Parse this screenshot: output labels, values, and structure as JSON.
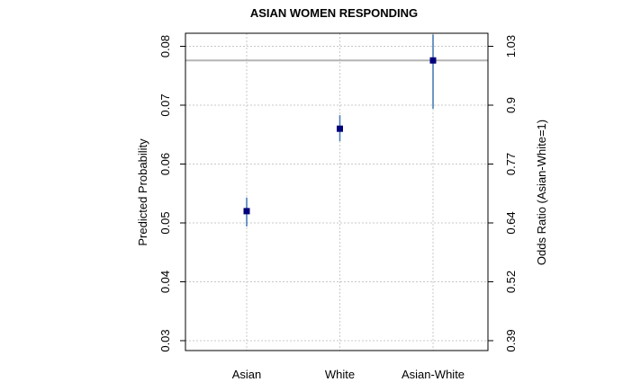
{
  "chart_data": {
    "type": "scatter",
    "title": "ASIAN WOMEN RESPONDING",
    "xlabel": "",
    "ylabel": "Predicted Probability",
    "ylabel_right": "Odds Ratio (Asian-White=1)",
    "categories": [
      "Asian",
      "White",
      "Asian-White"
    ],
    "estimates": [
      0.052,
      0.066,
      0.0776
    ],
    "ci_lower": [
      0.0494,
      0.0639,
      0.0694
    ],
    "ci_upper": [
      0.0543,
      0.0683,
      0.082
    ],
    "ylim": [
      0.03,
      0.082
    ],
    "y_ticks": [
      0.03,
      0.04,
      0.05,
      0.06,
      0.07,
      0.08
    ],
    "y_tick_labels": [
      "0.03",
      "0.04",
      "0.05",
      "0.06",
      "0.07",
      "0.08"
    ],
    "y2_ticks": [
      0.39,
      0.52,
      0.64,
      0.77,
      0.9,
      1.03
    ],
    "y2_tick_labels": [
      "0.39",
      "0.52",
      "0.64",
      "0.77",
      "0.9",
      "1.03"
    ],
    "reference_line": 0.0776,
    "grid": true,
    "colors": {
      "point": "#00007a",
      "error_bar": "#4a7fb5",
      "reference_line": "#b4b4b4",
      "grid": "#c8c8c8"
    }
  }
}
